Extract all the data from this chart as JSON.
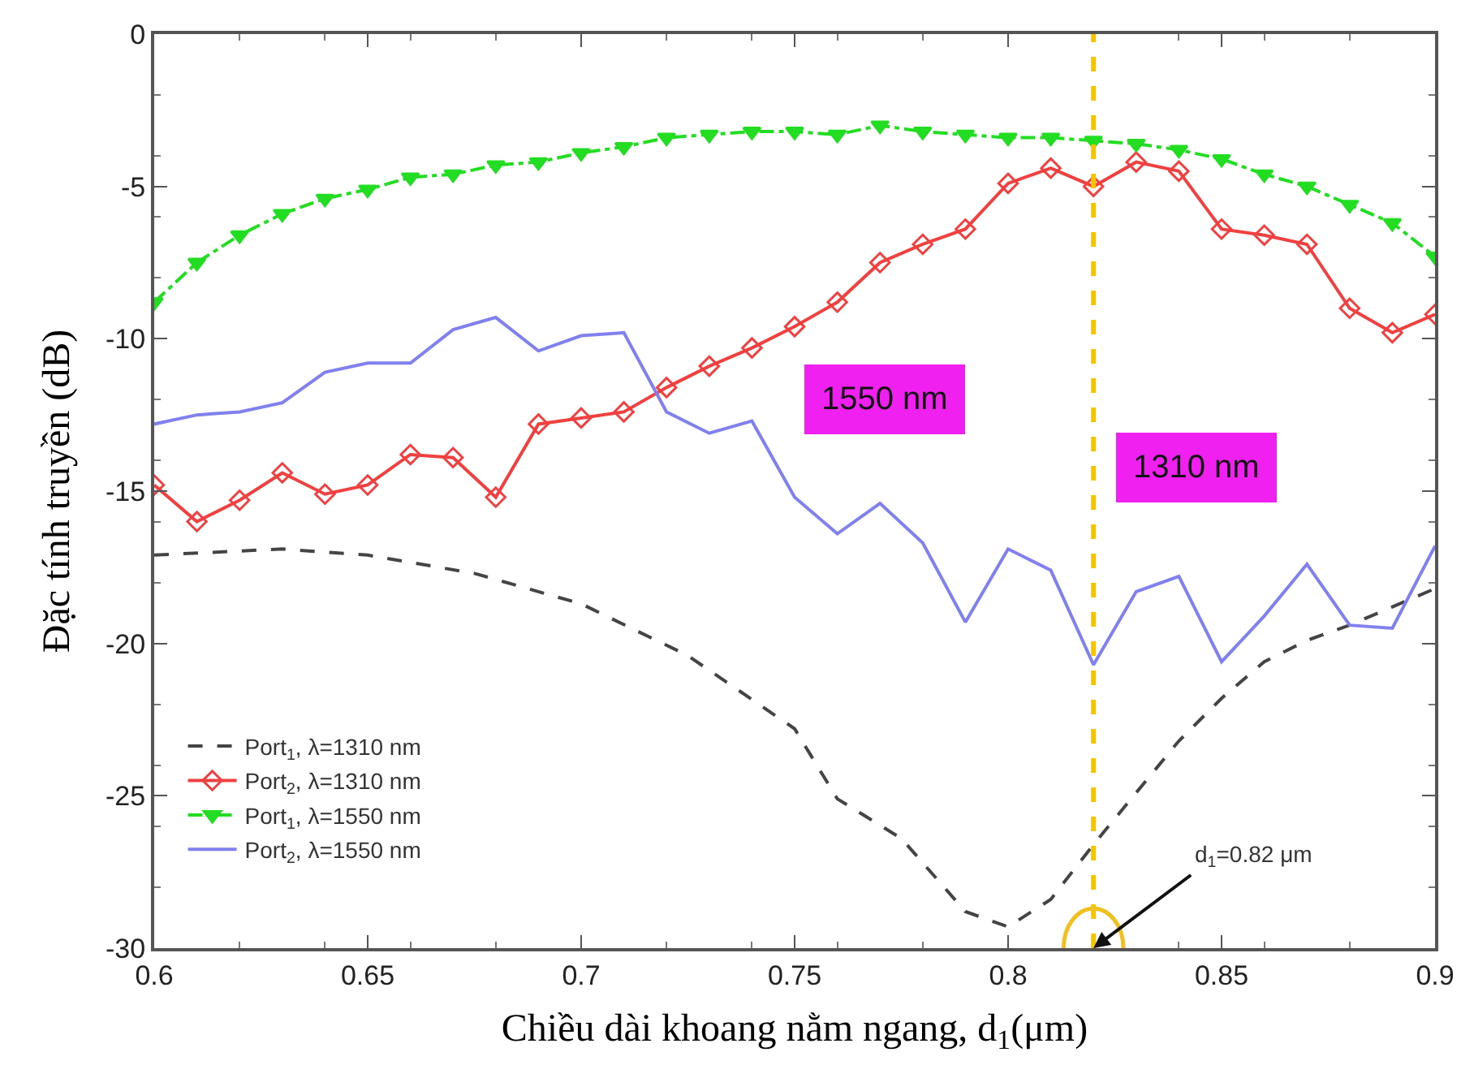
{
  "chart_data": {
    "type": "line",
    "xlabel": "Chiều dài khoang nằm ngang, d$_{1}$(μm)",
    "ylabel": "Đặc tính truyền (dB)",
    "xlim": [
      0.6,
      0.9
    ],
    "ylim": [
      -30,
      0
    ],
    "xticks": [
      0.6,
      0.65,
      0.7,
      0.75,
      0.8,
      0.85,
      0.9
    ],
    "yticks": [
      -30,
      -25,
      -20,
      -15,
      -10,
      -5,
      0
    ],
    "legend": "bottom left",
    "series": [
      {
        "name": "Port$_{1}$, λ=1310 nm",
        "color": "#444444",
        "line_style": "dashed",
        "marker": "none",
        "x": [
          0.6,
          0.63,
          0.65,
          0.675,
          0.7,
          0.725,
          0.75,
          0.76,
          0.775,
          0.79,
          0.8,
          0.81,
          0.82,
          0.83,
          0.84,
          0.85,
          0.86,
          0.87,
          0.88,
          0.89,
          0.9
        ],
        "values": [
          -17.1,
          -16.9,
          -17.1,
          -17.7,
          -18.7,
          -20.4,
          -22.8,
          -25.1,
          -26.4,
          -28.8,
          -29.3,
          -28.4,
          -26.6,
          -24.9,
          -23.2,
          -21.8,
          -20.6,
          -19.9,
          -19.4,
          -18.8,
          -18.2
        ]
      },
      {
        "name": "Port$_{2}$, λ=1310 nm",
        "color": "#f04040",
        "line_style": "solid",
        "marker": "diamond",
        "values": [
          -14.8,
          -16.0,
          -15.3,
          -14.4,
          -15.1,
          -14.8,
          -13.8,
          -13.9,
          -15.2,
          -12.8,
          -12.6,
          -12.4,
          -11.6,
          -10.9,
          -10.3,
          -9.6,
          -8.8,
          -7.5,
          -6.9,
          -6.4,
          -4.9,
          -4.4,
          -5.0,
          -4.2,
          -4.5,
          -6.4,
          -6.6,
          -6.9,
          -9.0,
          -9.8,
          -9.2
        ]
      },
      {
        "name": "Port$_{1}$, λ=1550 nm",
        "color": "#22dd22",
        "line_style": "dashdot",
        "marker": "triangle",
        "values": [
          -8.8,
          -7.5,
          -6.6,
          -5.9,
          -5.4,
          -5.1,
          -4.7,
          -4.6,
          -4.3,
          -4.2,
          -3.9,
          -3.7,
          -3.4,
          -3.3,
          -3.2,
          -3.2,
          -3.3,
          -3.0,
          -3.2,
          -3.3,
          -3.4,
          -3.4,
          -3.5,
          -3.6,
          -3.8,
          -4.1,
          -4.6,
          -5.0,
          -5.6,
          -6.2,
          -7.3
        ]
      },
      {
        "name": "Port$_{2}$, λ=1550 nm",
        "color": "#8080ee",
        "line_style": "solid",
        "marker": "none",
        "values": [
          -12.8,
          -12.5,
          -12.4,
          -12.1,
          -11.1,
          -10.8,
          -10.8,
          -9.7,
          -9.3,
          -10.4,
          -9.9,
          -9.8,
          -12.4,
          -13.1,
          -12.7,
          -15.2,
          -16.4,
          -15.4,
          -16.7,
          -19.3,
          -16.9,
          -17.6,
          -20.7,
          -18.3,
          -17.8,
          -20.6,
          -19.1,
          -17.4,
          -19.4,
          -19.5,
          -16.8
        ]
      }
    ],
    "x": [
      0.6,
      0.61,
      0.62,
      0.63,
      0.64,
      0.65,
      0.66,
      0.67,
      0.68,
      0.69,
      0.7,
      0.71,
      0.72,
      0.73,
      0.74,
      0.75,
      0.76,
      0.77,
      0.78,
      0.79,
      0.8,
      0.81,
      0.82,
      0.83,
      0.84,
      0.85,
      0.86,
      0.87,
      0.88,
      0.89,
      0.9
    ],
    "ref_lines": [
      {
        "axis": "x",
        "value": 0.82,
        "color": "#f5c400",
        "line_style": "dashed"
      }
    ],
    "annotations": [
      {
        "text": "d$_{1}$=0.82 μm",
        "x": 0.82,
        "y": -30
      },
      "1550 nm",
      "1310 nm"
    ]
  }
}
